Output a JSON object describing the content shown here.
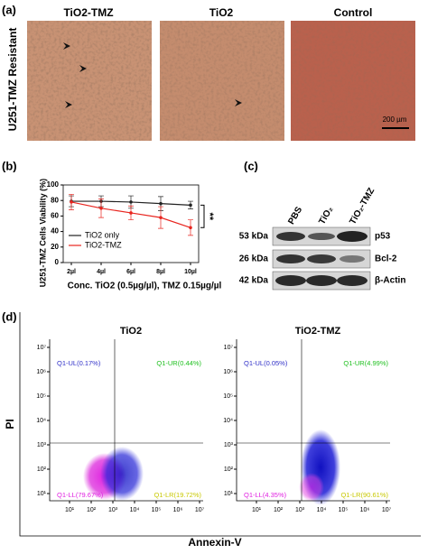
{
  "panel_a": {
    "label": "(a)",
    "row_label": "U251-TMZ Resistant",
    "titles": [
      "TiO2-TMZ",
      "TiO2",
      "Control"
    ],
    "scale_bar": "200 µm"
  },
  "chart_data": {
    "type": "line",
    "label": "(b)",
    "ylabel": "U251-TMZ Cells Viability (%)",
    "xlabel": "Conc. TiO2 (0.5µg/µl), TMZ 0.15µg/µl",
    "categories": [
      "2µl",
      "4µl",
      "6µl",
      "8µl",
      "10µl"
    ],
    "series": [
      {
        "name": "TiO2 only",
        "color": "#222222",
        "values": [
          79,
          79,
          78,
          76,
          74
        ],
        "errors": [
          7,
          7,
          8,
          9,
          5
        ]
      },
      {
        "name": "TiO2-TMZ",
        "color": "#e8251f",
        "values": [
          78,
          70,
          64,
          58,
          45
        ],
        "errors": [
          10,
          12,
          9,
          14,
          10
        ]
      }
    ],
    "ylim": [
      0,
      100
    ],
    "yticks": [
      0,
      20,
      40,
      60,
      80,
      100
    ],
    "legend": "lower left",
    "annotation": "**"
  },
  "panel_c": {
    "label": "(c)",
    "lanes": [
      "PBS",
      "TiO₂",
      "TiO₂-TMZ"
    ],
    "rows": [
      {
        "weight": "53 kDa",
        "protein": "p53"
      },
      {
        "weight": "26 kDa",
        "protein": "Bcl-2"
      },
      {
        "weight": "42 kDa",
        "protein": "β-Actin"
      }
    ]
  },
  "panel_d": {
    "label": "(d)",
    "ylabel": "PI",
    "xlabel": "Annexin-V",
    "ticks": [
      "10¹",
      "10²",
      "10³",
      "10⁴",
      "10⁵",
      "10⁶",
      "10⁷"
    ],
    "plots": [
      {
        "title": "TiO2",
        "ul": "Q1-UL(0.17%)",
        "ur": "Q1-UR(0.44%)",
        "ll": "Q1-LL(79.67%)",
        "lr": "Q1-LR(19.72%)"
      },
      {
        "title": "TiO2-TMZ",
        "ul": "Q1-UL(0.05%)",
        "ur": "Q1-UR(4.99%)",
        "ll": "Q1-LL(4.35%)",
        "lr": "Q1-LR(90.61%)"
      }
    ]
  }
}
